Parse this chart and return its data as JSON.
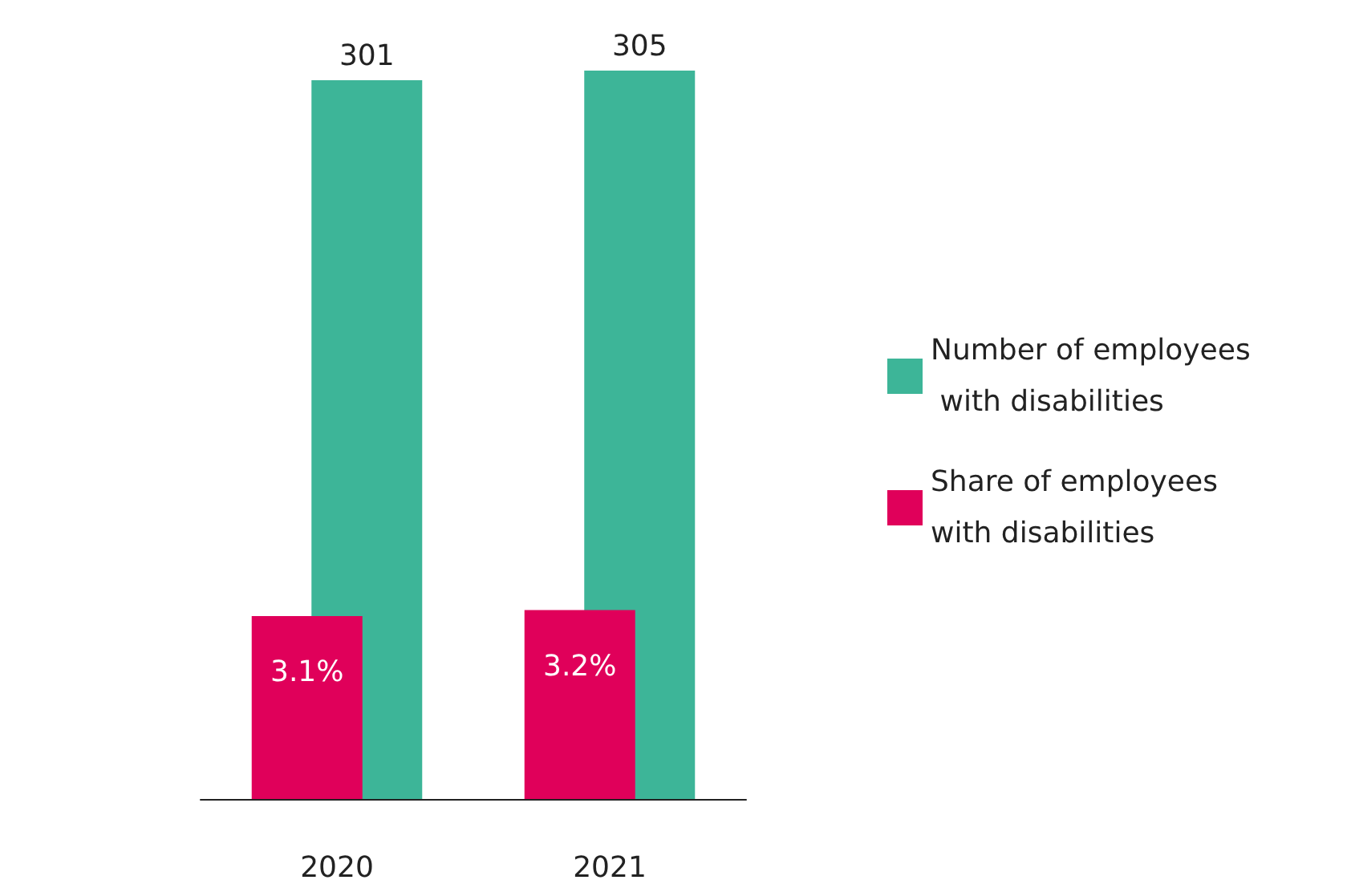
{
  "chart_data": {
    "type": "bar",
    "categories": [
      "2020",
      "2021"
    ],
    "series": [
      {
        "name": "Number of employees with disabilities",
        "color": "#3db598",
        "values": [
          301,
          305
        ],
        "value_labels": [
          "301",
          "305"
        ]
      },
      {
        "name": "Share of employees with disabilities",
        "color": "#e0005a",
        "values": [
          3.1,
          3.2
        ],
        "value_labels": [
          "3.1%",
          "3.2%"
        ],
        "axis": "y2"
      }
    ],
    "tick_labels": "x",
    "grid": false,
    "legend": "right"
  }
}
